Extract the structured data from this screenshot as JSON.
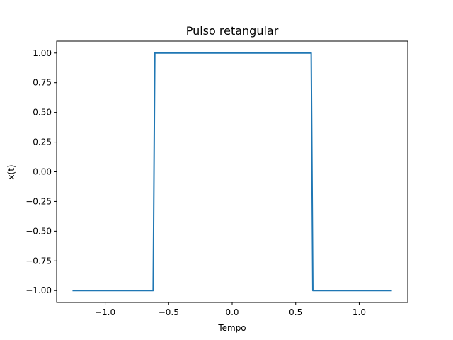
{
  "chart_data": {
    "type": "line",
    "title": "Pulso retangular",
    "xlabel": "Tempo",
    "ylabel": "x(t)",
    "xlim": [
      -1.382,
      1.382
    ],
    "ylim": [
      -1.1,
      1.1
    ],
    "grid": false,
    "x_ticks": [
      -1.0,
      -0.5,
      0.0,
      0.5,
      1.0
    ],
    "x_tick_labels": [
      "−1.0",
      "−0.5",
      "0.0",
      "0.5",
      "1.0"
    ],
    "y_ticks": [
      1.0,
      0.75,
      0.5,
      0.25,
      0.0,
      -0.25,
      -0.5,
      -0.75,
      -1.0
    ],
    "y_tick_labels": [
      "1.00",
      "0.75",
      "0.50",
      "0.25",
      "0.00",
      "−0.25",
      "−0.50",
      "−0.75",
      "−1.00"
    ],
    "series": [
      {
        "color": "#1f77b4",
        "x": [
          -1.257,
          -0.622,
          -0.609,
          0.622,
          0.635,
          1.257
        ],
        "y": [
          -1.0,
          -1.0,
          1.0,
          1.0,
          -1.0,
          -1.0
        ]
      }
    ]
  }
}
